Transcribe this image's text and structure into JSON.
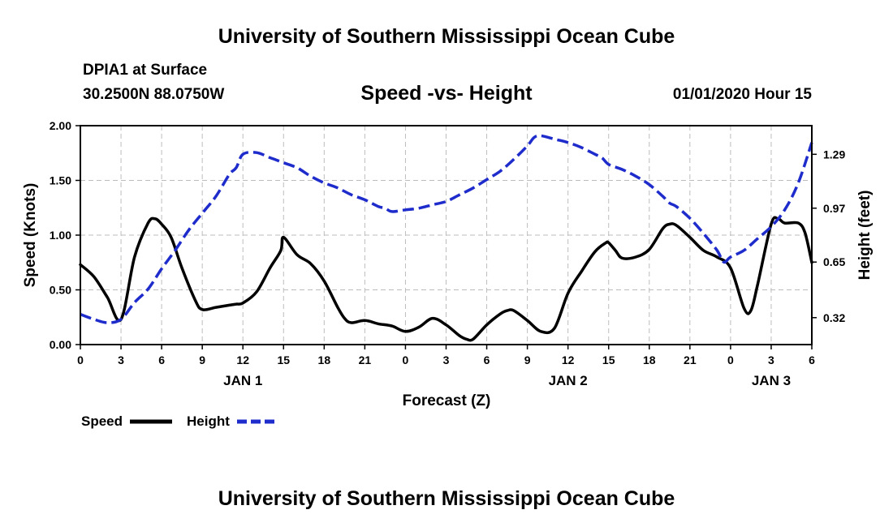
{
  "header": {
    "title_top": "University of Southern Mississippi Ocean Cube",
    "station": "DPIA1 at Surface",
    "coords": "30.2500N 88.0750W",
    "subtitle": "Speed -vs- Height",
    "datetime": "01/01/2020 Hour 15",
    "title_bottom": "University of Southern Mississippi Ocean Cube"
  },
  "legend": {
    "speed_label": "Speed",
    "height_label": "Height"
  },
  "chart_data": {
    "type": "line",
    "title": "Speed -vs- Height",
    "xlabel": "Forecast (Z)",
    "ylabel": "Speed (Knots)",
    "y2label": "Height (feet)",
    "xlim": [
      0,
      54
    ],
    "ylim": [
      0,
      2.0
    ],
    "y2lim": [
      0.16,
      1.46
    ],
    "x_ticks": [
      0,
      3,
      6,
      9,
      12,
      15,
      18,
      21,
      24,
      27,
      30,
      33,
      36,
      39,
      42,
      45,
      48,
      51,
      54
    ],
    "x_tick_labels": [
      "0",
      "3",
      "6",
      "9",
      "12",
      "15",
      "18",
      "21",
      "0",
      "3",
      "6",
      "9",
      "12",
      "15",
      "18",
      "21",
      "0",
      "3",
      "6"
    ],
    "date_labels": [
      {
        "x": 12,
        "label": "JAN 1"
      },
      {
        "x": 36,
        "label": "JAN 2"
      },
      {
        "x": 51,
        "label": "JAN 3"
      }
    ],
    "y_ticks": [
      0.0,
      0.5,
      1.0,
      1.5,
      2.0
    ],
    "y_tick_labels": [
      "0.00",
      "0.50",
      "1.00",
      "1.50",
      "2.00"
    ],
    "y2_ticks": [
      0.32,
      0.65,
      0.97,
      1.29
    ],
    "y2_tick_labels": [
      "0.32",
      "0.65",
      "0.97",
      "1.29"
    ],
    "grid": true,
    "series": [
      {
        "name": "Speed",
        "axis": "left",
        "color": "#000000",
        "style": "solid",
        "x": [
          0,
          1,
          2,
          3,
          4,
          5,
          5.5,
          6,
          6.7,
          7.5,
          8.5,
          9,
          10,
          11,
          11.5,
          12,
          13,
          14,
          14.8,
          15,
          16,
          17,
          18,
          19,
          19.5,
          20,
          21,
          22,
          23,
          24,
          25,
          26,
          27,
          28,
          28.5,
          29,
          30,
          31,
          31.5,
          32,
          33,
          34,
          35,
          36,
          37,
          38,
          38.8,
          39,
          39.5,
          40,
          41,
          42,
          43,
          43.5,
          44,
          45,
          46,
          47,
          48,
          49,
          49.5,
          50,
          51,
          51.5,
          52,
          53,
          53.5,
          54
        ],
        "values": [
          0.73,
          0.62,
          0.43,
          0.23,
          0.8,
          1.11,
          1.15,
          1.1,
          0.98,
          0.7,
          0.4,
          0.32,
          0.34,
          0.36,
          0.37,
          0.38,
          0.48,
          0.7,
          0.86,
          0.98,
          0.82,
          0.74,
          0.58,
          0.34,
          0.24,
          0.2,
          0.22,
          0.19,
          0.17,
          0.12,
          0.16,
          0.24,
          0.18,
          0.08,
          0.05,
          0.05,
          0.18,
          0.28,
          0.31,
          0.31,
          0.22,
          0.12,
          0.15,
          0.47,
          0.67,
          0.85,
          0.93,
          0.93,
          0.86,
          0.79,
          0.8,
          0.87,
          1.06,
          1.1,
          1.09,
          0.98,
          0.86,
          0.8,
          0.7,
          0.33,
          0.31,
          0.55,
          1.1,
          1.15,
          1.11,
          1.11,
          1.02,
          0.75
        ]
      },
      {
        "name": "Height",
        "axis": "right",
        "color": "#1f2ccc",
        "style": "dashed",
        "x": [
          0,
          1,
          2,
          3,
          4,
          5,
          6,
          7,
          8,
          9,
          10,
          11,
          11.5,
          12,
          13,
          14,
          15,
          16,
          17,
          18,
          19,
          20,
          21,
          22,
          22.5,
          23,
          24,
          25,
          26,
          27,
          28,
          29,
          30,
          31,
          32,
          33,
          33.5,
          34,
          35,
          36,
          37,
          38,
          38.5,
          39,
          40,
          41,
          42,
          43,
          43.5,
          44,
          45,
          46,
          47,
          47.5,
          48,
          49,
          50,
          51,
          52,
          53,
          54
        ],
        "values": [
          0.34,
          0.31,
          0.29,
          0.31,
          0.41,
          0.49,
          0.61,
          0.72,
          0.84,
          0.94,
          1.04,
          1.17,
          1.21,
          1.29,
          1.3,
          1.27,
          1.24,
          1.21,
          1.16,
          1.12,
          1.09,
          1.05,
          1.02,
          0.98,
          0.97,
          0.95,
          0.96,
          0.97,
          0.99,
          1.01,
          1.05,
          1.09,
          1.14,
          1.19,
          1.26,
          1.34,
          1.39,
          1.4,
          1.38,
          1.36,
          1.33,
          1.29,
          1.27,
          1.23,
          1.2,
          1.16,
          1.11,
          1.04,
          1.0,
          0.98,
          0.91,
          0.82,
          0.72,
          0.65,
          0.68,
          0.72,
          0.79,
          0.86,
          0.96,
          1.12,
          1.36
        ]
      }
    ]
  }
}
